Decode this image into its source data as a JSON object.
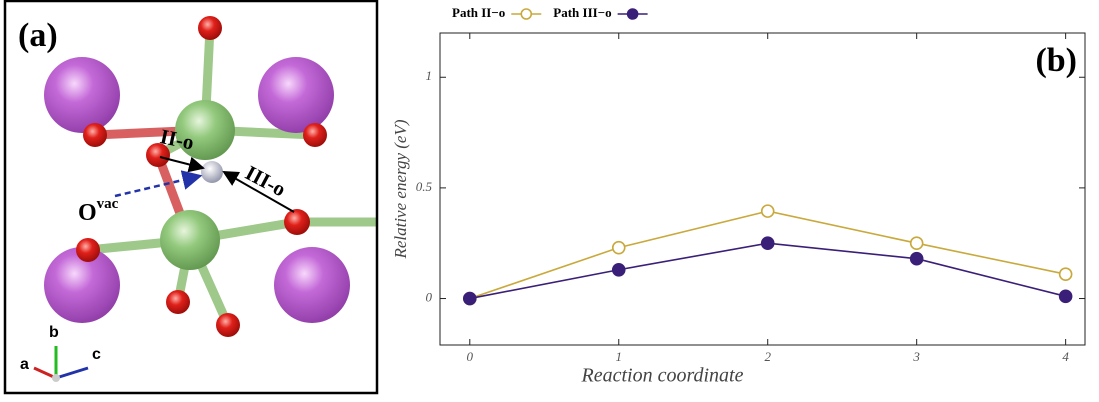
{
  "structure": {
    "panel_label": "(a)",
    "path_labels": [
      "II-o",
      "III-o"
    ],
    "vacancy_label": {
      "base": "O",
      "sup": "vac"
    },
    "axes": [
      "a",
      "b",
      "c"
    ]
  },
  "chart_data": {
    "type": "line",
    "annotation": "(b)",
    "x": [
      0,
      1,
      2,
      3,
      4
    ],
    "series": [
      {
        "name": "Path II−o",
        "color": "#c9a93c",
        "filled": false,
        "values": [
          0,
          0.23,
          0.395,
          0.25,
          0.11
        ]
      },
      {
        "name": "Path III−o",
        "color": "#3a1f78",
        "filled": true,
        "values": [
          0,
          0.13,
          0.25,
          0.18,
          0.01
        ]
      }
    ],
    "xlabel": "Reaction coordinate",
    "ylabel": "Relative energy (eV)",
    "xlim": [
      -0.2,
      4.13
    ],
    "ylim": [
      -0.21,
      1.2
    ],
    "xticks": [
      0,
      1,
      2,
      3,
      4
    ],
    "yticks": [
      0,
      0.5,
      1
    ],
    "legend": "top",
    "grid": false
  }
}
